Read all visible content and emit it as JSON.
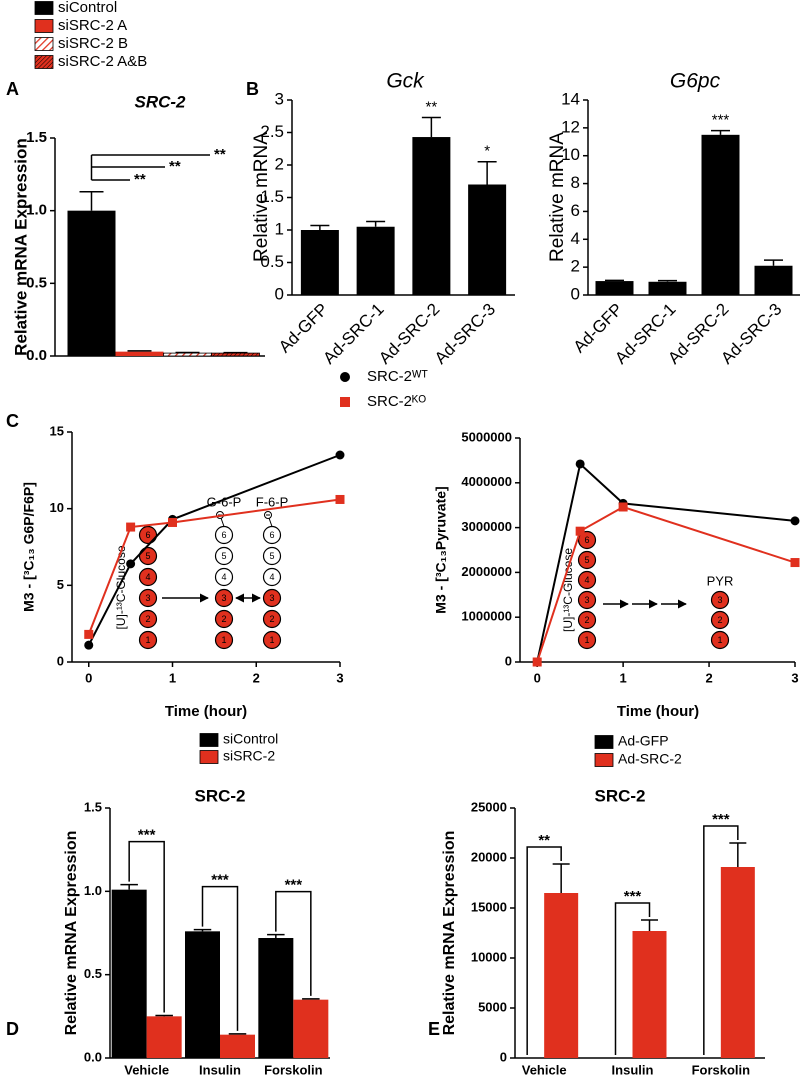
{
  "chart_data": [
    {
      "type": "bar",
      "panel": "A",
      "title": "SRC-2",
      "y_label": "Relative mRNA Expression",
      "categories": [
        null
      ],
      "series": [
        {
          "name": "siControl",
          "color": "#000000",
          "values": [
            1.0
          ],
          "errors": [
            0.13
          ]
        },
        {
          "name": "siSRC-2 A",
          "color": "#e0301e",
          "values": [
            0.03
          ],
          "errors": [
            0.005
          ]
        },
        {
          "name": "siSRC-2 B",
          "color": "#e0301e",
          "pattern": "stripes",
          "values": [
            0.02
          ],
          "errors": [
            0.004
          ]
        },
        {
          "name": "siSRC-2 A&B",
          "color": "#e0301e",
          "pattern": "dense-stripes",
          "values": [
            0.02
          ],
          "errors": [
            0.003
          ]
        }
      ],
      "ylim": [
        0,
        1.5
      ],
      "yticks": [
        {
          "value": 0,
          "label": "0.0"
        },
        0.5,
        {
          "value": 1,
          "label": "1.0"
        },
        1.5
      ],
      "legend": "top-left",
      "significance": [
        "**",
        "**",
        "**"
      ]
    },
    {
      "type": "bar",
      "panel": "B",
      "title": "Gck",
      "y_label": "Relative mRNA",
      "categories": [
        "Ad-GFP",
        "Ad-SRC-1",
        "Ad-SRC-2",
        "Ad-SRC-3"
      ],
      "series": [
        {
          "color": "#000000",
          "values": [
            1.0,
            1.05,
            2.43,
            1.7
          ],
          "errors": [
            0.07,
            0.08,
            0.3,
            0.35
          ]
        }
      ],
      "ylim": [
        0,
        3
      ],
      "yticks": [
        0,
        0.5,
        1,
        1.5,
        2,
        2.5,
        3
      ],
      "significance": [
        null,
        null,
        "**",
        "*"
      ]
    },
    {
      "type": "bar",
      "title": "G6pc",
      "y_label": "Relative mRNA",
      "categories": [
        "Ad-GFP",
        "Ad-SRC-1",
        "Ad-SRC-2",
        "Ad-SRC-3"
      ],
      "series": [
        {
          "color": "#000000",
          "values": [
            1.0,
            0.95,
            11.5,
            2.1
          ],
          "errors": [
            0.05,
            0.08,
            0.3,
            0.4
          ]
        }
      ],
      "ylim": [
        0,
        14
      ],
      "yticks": [
        0,
        2,
        4,
        6,
        8,
        10,
        12,
        14
      ],
      "significance": [
        null,
        null,
        "***",
        null
      ]
    },
    {
      "type": "line",
      "panel": "C",
      "y_label": "M3 - [³C₁₃ G6P/F6P]",
      "x_label": "Time (hour)",
      "x": [
        0,
        0.5,
        1,
        3
      ],
      "series": [
        {
          "name": "SRC-2ᵂᵀ",
          "color": "#000000",
          "marker": "circle",
          "values": [
            1.1,
            6.4,
            9.3,
            13.5
          ]
        },
        {
          "name": "SRC-2ᴷᴼ",
          "color": "#e0301e",
          "marker": "square",
          "values": [
            1.8,
            8.8,
            9.1,
            10.6
          ]
        }
      ],
      "xlim": [
        -0.2,
        3
      ],
      "xticks": [
        0,
        1,
        2,
        3
      ],
      "ylim": [
        0,
        15
      ],
      "yticks": [
        0,
        5,
        10,
        15
      ],
      "legend": "top-right",
      "inset": {
        "substrate": "[U]-¹³C-Glucose",
        "carbons": [
          6,
          5,
          4,
          3,
          2,
          1
        ],
        "products": [
          {
            "name": "G-6-P",
            "carbons": [
              6,
              5,
              4,
              3,
              2,
              1
            ],
            "labeled": [
              false,
              false,
              false,
              true,
              true,
              true
            ]
          },
          {
            "name": "F-6-P",
            "carbons": [
              6,
              5,
              4,
              3,
              2,
              1
            ],
            "labeled": [
              false,
              false,
              false,
              true,
              true,
              true
            ]
          }
        ]
      }
    },
    {
      "type": "line",
      "y_label": "M3 - [³C₁₃Pyruvate]",
      "x_label": "Time (hour)",
      "x": [
        0,
        0.5,
        1,
        3
      ],
      "series": [
        {
          "color": "#000000",
          "marker": "circle",
          "values": [
            0,
            4420000,
            3540000,
            3150000
          ]
        },
        {
          "color": "#e0301e",
          "marker": "square",
          "values": [
            0,
            2920000,
            3460000,
            2220000
          ]
        }
      ],
      "xlim": [
        -0.2,
        3
      ],
      "xticks": [
        0,
        1,
        2,
        3
      ],
      "ylim": [
        0,
        5000000
      ],
      "yticks": [
        0,
        1000000,
        2000000,
        3000000,
        4000000,
        5000000
      ],
      "inset": {
        "substrate": "[U]-¹³C-Glucose",
        "carbons": [
          6,
          5,
          4,
          3,
          2,
          1
        ],
        "products": [
          {
            "name": "PYR",
            "carbons": [
              3,
              2,
              1
            ],
            "labeled": [
              true,
              true,
              true
            ]
          }
        ]
      }
    },
    {
      "type": "bar",
      "panel": "D",
      "title": "SRC-2",
      "y_label": "Relative mRNA Expression",
      "categories": [
        "Vehicle",
        "Insulin",
        "Forskolin"
      ],
      "series": [
        {
          "name": "siControl",
          "color": "#000000",
          "values": [
            1.01,
            0.76,
            0.72
          ],
          "errors": [
            0.03,
            0.01,
            0.02
          ]
        },
        {
          "name": "siSRC-2",
          "color": "#e0301e",
          "values": [
            0.25,
            0.14,
            0.35
          ],
          "errors": [
            0.005,
            0.005,
            0.005
          ]
        }
      ],
      "ylim": [
        0,
        1.5
      ],
      "yticks": [
        {
          "value": 0,
          "label": "0.0"
        },
        0.5,
        {
          "value": 1,
          "label": "1.0"
        },
        1.5
      ],
      "legend": "top-center",
      "significance": [
        "***",
        "***",
        "***"
      ]
    },
    {
      "type": "bar",
      "panel": "E",
      "title": "SRC-2",
      "y_label": "Relative mRNA Expression",
      "categories": [
        "Vehicle",
        "Insulin",
        "Forskolin"
      ],
      "series": [
        {
          "name": "Ad-GFP",
          "color": "#000000",
          "values": [
            1,
            1,
            1
          ]
        },
        {
          "name": "Ad-SRC-2",
          "color": "#e0301e",
          "values": [
            16500,
            12700,
            19100
          ],
          "errors": [
            2900,
            1100,
            2400
          ]
        }
      ],
      "ylim": [
        0,
        25000
      ],
      "yticks": [
        0,
        5000,
        10000,
        15000,
        20000,
        25000
      ],
      "legend": "top-center",
      "significance": [
        "**",
        "***",
        "***"
      ]
    }
  ]
}
